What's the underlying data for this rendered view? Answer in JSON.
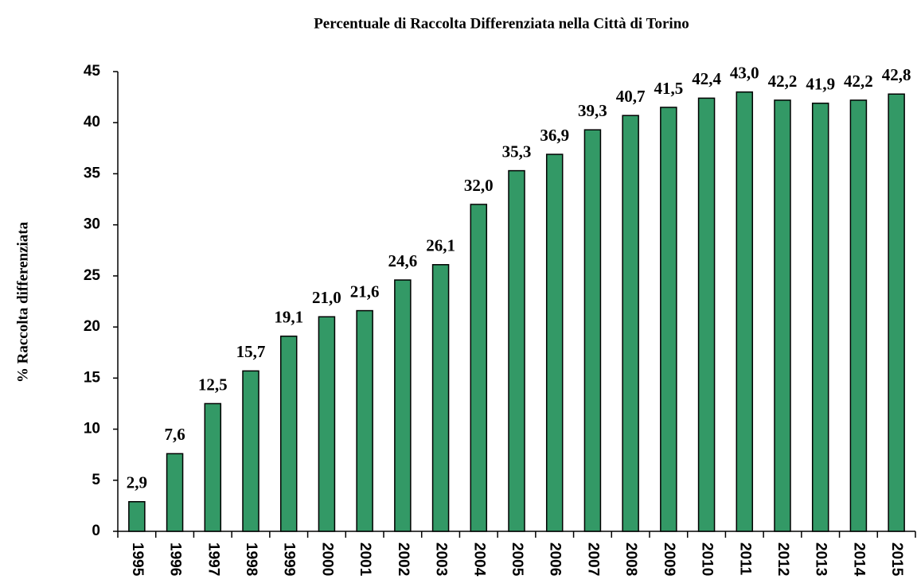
{
  "chart_data": {
    "type": "bar",
    "title": "Percentuale di Raccolta Differenziata nella Città di Torino",
    "y_label": "% Raccolta differenziata",
    "categories": [
      "1995",
      "1996",
      "1997",
      "1998",
      "1999",
      "2000",
      "2001",
      "2002",
      "2003",
      "2004",
      "2005",
      "2006",
      "2007",
      "2008",
      "2009",
      "2010",
      "2011",
      "2012",
      "2013",
      "2014",
      "2015"
    ],
    "values": [
      2.9,
      7.6,
      12.5,
      15.7,
      19.1,
      21.0,
      21.6,
      24.6,
      26.1,
      32.0,
      35.3,
      36.9,
      39.3,
      40.7,
      41.5,
      42.4,
      43.0,
      42.2,
      41.9,
      42.2,
      42.8
    ],
    "value_labels": [
      "2,9",
      "7,6",
      "12,5",
      "15,7",
      "19,1",
      "21,0",
      "21,6",
      "24,6",
      "26,1",
      "32,0",
      "35,3",
      "36,9",
      "39,3",
      "40,7",
      "41,5",
      "42,4",
      "43,0",
      "42,2",
      "41,9",
      "42,2",
      "42,8"
    ],
    "color": "#339966",
    "ylim": [
      0,
      45
    ],
    "yticks": [
      0,
      5,
      10,
      15,
      20,
      25,
      30,
      35,
      40,
      45
    ],
    "grid": false
  }
}
